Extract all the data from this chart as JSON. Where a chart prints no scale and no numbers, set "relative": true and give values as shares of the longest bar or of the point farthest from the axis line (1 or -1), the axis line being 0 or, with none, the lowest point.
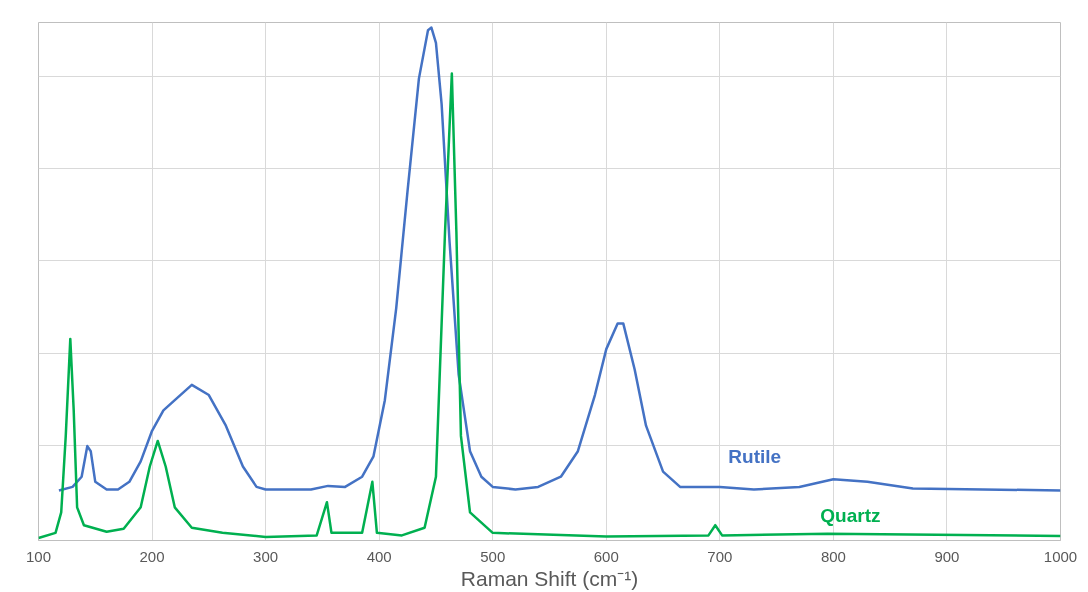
{
  "chart_data": {
    "type": "line",
    "xlabel": "Raman Shift (cm⁻¹)",
    "relative": true,
    "xlim": [
      100,
      1000
    ],
    "xticks": [
      100,
      200,
      300,
      400,
      500,
      600,
      700,
      800,
      900,
      1000
    ],
    "grid": true,
    "tick_labels": "x",
    "legend": false,
    "series": [
      {
        "name": "Rutile",
        "color": "#4472c4",
        "x": [
          118,
          130,
          138,
          143,
          146,
          150,
          160,
          170,
          180,
          190,
          200,
          210,
          220,
          235,
          250,
          265,
          280,
          292,
          300,
          340,
          355,
          370,
          385,
          395,
          405,
          415,
          425,
          435,
          443,
          446,
          450,
          455,
          462,
          470,
          480,
          490,
          500,
          520,
          540,
          560,
          575,
          590,
          600,
          610,
          615,
          625,
          635,
          650,
          665,
          700,
          730,
          770,
          800,
          830,
          870,
          1000
        ],
        "values": [
          0.093,
          0.1,
          0.12,
          0.18,
          0.17,
          0.11,
          0.095,
          0.095,
          0.11,
          0.15,
          0.21,
          0.25,
          0.27,
          0.3,
          0.28,
          0.22,
          0.14,
          0.1,
          0.095,
          0.095,
          0.102,
          0.1,
          0.12,
          0.16,
          0.27,
          0.45,
          0.68,
          0.9,
          0.995,
          1.0,
          0.97,
          0.85,
          0.58,
          0.32,
          0.17,
          0.12,
          0.1,
          0.095,
          0.1,
          0.12,
          0.17,
          0.28,
          0.37,
          0.42,
          0.42,
          0.33,
          0.22,
          0.13,
          0.1,
          0.1,
          0.095,
          0.1,
          0.115,
          0.11,
          0.097,
          0.093
        ]
      },
      {
        "name": "Quartz",
        "color": "#00b050",
        "x": [
          100,
          115,
          120,
          124,
          128,
          131,
          134,
          140,
          160,
          175,
          190,
          198,
          205,
          212,
          220,
          235,
          262,
          300,
          345,
          354,
          358,
          385,
          394,
          398,
          420,
          440,
          450,
          458,
          464,
          468,
          472,
          480,
          500,
          600,
          690,
          696,
          702,
          795,
          1000
        ],
        "values": [
          0.0,
          0.01,
          0.05,
          0.2,
          0.39,
          0.25,
          0.06,
          0.025,
          0.012,
          0.018,
          0.06,
          0.14,
          0.19,
          0.14,
          0.06,
          0.02,
          0.01,
          0.002,
          0.005,
          0.07,
          0.01,
          0.01,
          0.11,
          0.01,
          0.005,
          0.02,
          0.12,
          0.6,
          0.91,
          0.6,
          0.2,
          0.05,
          0.01,
          0.003,
          0.005,
          0.025,
          0.005,
          0.008,
          0.004
        ]
      }
    ]
  }
}
